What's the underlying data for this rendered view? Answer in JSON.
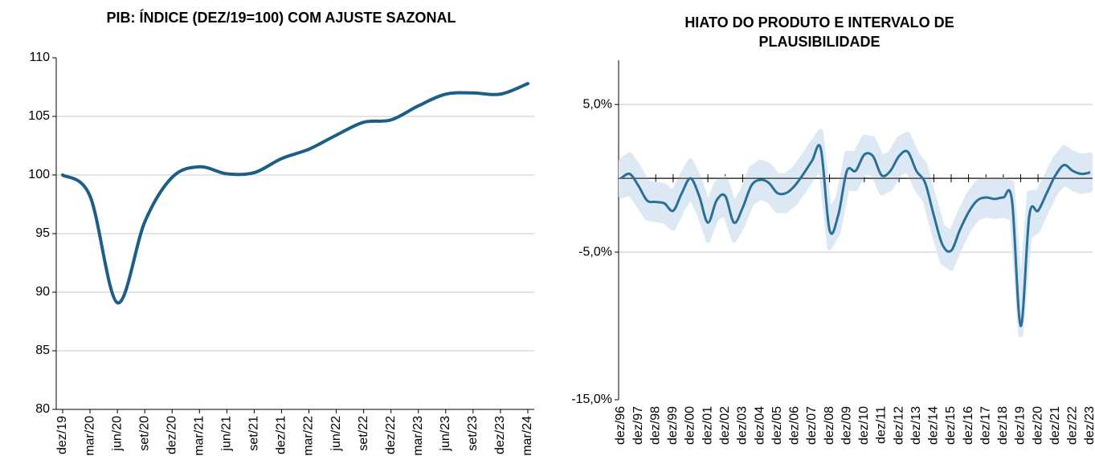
{
  "chart_data": [
    {
      "type": "line",
      "title": "PIB: ÍNDICE (DEZ/19=100) COM AJUSTE SAZONAL",
      "categories": [
        "dez/19",
        "mar/20",
        "jun/20",
        "set/20",
        "dez/20",
        "mar/21",
        "jun/21",
        "set/21",
        "dez/21",
        "mar/22",
        "jun/22",
        "set/22",
        "dez/22",
        "mar/23",
        "jun/23",
        "set/23",
        "dez/23",
        "mar/24"
      ],
      "values": [
        100,
        98.2,
        89.1,
        96,
        99.8,
        100.7,
        100.1,
        100.2,
        101.4,
        102.2,
        103.4,
        104.5,
        104.7,
        105.9,
        106.9,
        107,
        106.9,
        107.8
      ],
      "color": "#1b5e86",
      "ylim": [
        80,
        110
      ],
      "yticks": [
        80,
        85,
        90,
        95,
        100,
        105,
        110
      ],
      "grid": true
    },
    {
      "type": "band-line",
      "title": "HIATO DO PRODUTO E INTERVALO DE PLAUSIBILIDADE",
      "categories": [
        "dez/96",
        null,
        "dez/97",
        null,
        "dez/98",
        null,
        "dez/99",
        null,
        "dez/00",
        null,
        "dez/01",
        null,
        "dez/02",
        null,
        "dez/03",
        null,
        "dez/04",
        null,
        "dez/05",
        null,
        "dez/06",
        null,
        "dez/07",
        null,
        "dez/08",
        null,
        "dez/09",
        null,
        "dez/10",
        null,
        "dez/11",
        null,
        "dez/12",
        null,
        "dez/13",
        null,
        "dez/14",
        null,
        "dez/15",
        null,
        "dez/16",
        null,
        "dez/17",
        null,
        "dez/18",
        null,
        "dez/19",
        null,
        "dez/20",
        null,
        "dez/21",
        null,
        "dez/22",
        null,
        "dez/23"
      ],
      "values": [
        0,
        0.3,
        -0.5,
        -1.5,
        -1.6,
        -1.7,
        -2.2,
        -1.0,
        0,
        -1.2,
        -3.0,
        -1.5,
        -1.2,
        -3.0,
        -2.0,
        -0.5,
        -0.1,
        -0.3,
        -1.0,
        -1.0,
        -0.5,
        0.3,
        1.2,
        2.0,
        -3.5,
        -2.5,
        0.5,
        0.5,
        1.6,
        1.5,
        0.2,
        0.5,
        1.5,
        1.8,
        0.5,
        -0.3,
        -2.5,
        -4.5,
        -4.9,
        -3.5,
        -2.3,
        -1.5,
        -1.3,
        -1.4,
        -1.3,
        -1.5,
        -10.0,
        -2.5,
        -2.2,
        -1.0,
        0.2,
        0.9,
        0.5,
        0.3,
        0.4
      ],
      "band": {
        "color": "#dce8f3",
        "upper": [
          1.2,
          1.6,
          0.8,
          -0.3,
          -0.4,
          -0.5,
          -1.0,
          0.2,
          1.2,
          0,
          -1.8,
          -0.3,
          0,
          -1.8,
          -0.8,
          0.7,
          1.1,
          0.9,
          0.2,
          0.2,
          0.7,
          1.5,
          2.4,
          3.2,
          -2.3,
          -1.3,
          1.7,
          1.7,
          2.8,
          2.7,
          1.4,
          1.7,
          2.7,
          3.0,
          1.7,
          0.9,
          -1.3,
          -3.3,
          -3.7,
          -2.3,
          -1.1,
          -0.3,
          -0.1,
          -0.2,
          -0.1,
          -0.3,
          -8.5,
          -1.0,
          -0.9,
          0.2,
          1.4,
          2.1,
          1.7,
          1.5,
          1.6
        ],
        "lower": [
          -1.2,
          -1.0,
          -1.8,
          -2.7,
          -2.8,
          -2.9,
          -3.4,
          -2.2,
          -1.2,
          -2.4,
          -4.2,
          -2.7,
          -2.4,
          -4.2,
          -3.2,
          -1.7,
          -1.3,
          -1.5,
          -2.2,
          -2.2,
          -1.7,
          -0.9,
          0,
          0.8,
          -4.7,
          -3.7,
          -0.7,
          -0.7,
          0.4,
          0.3,
          -1.0,
          -0.7,
          0.3,
          0.6,
          -0.7,
          -1.5,
          -3.7,
          -5.7,
          -6.1,
          -4.7,
          -3.5,
          -2.7,
          -2.5,
          -2.6,
          -2.5,
          -2.7,
          -10.6,
          -4.0,
          -3.5,
          -2.2,
          -1.0,
          -0.3,
          -0.7,
          -0.9,
          -0.8
        ]
      },
      "color": "#2a6f97",
      "ylim": [
        -15,
        8
      ],
      "yticks": [
        {
          "value": -15,
          "label": "-15,0%"
        },
        {
          "value": -5,
          "label": "-5,0%"
        },
        {
          "value": 5,
          "label": "5,0%"
        }
      ],
      "grid": true
    }
  ]
}
